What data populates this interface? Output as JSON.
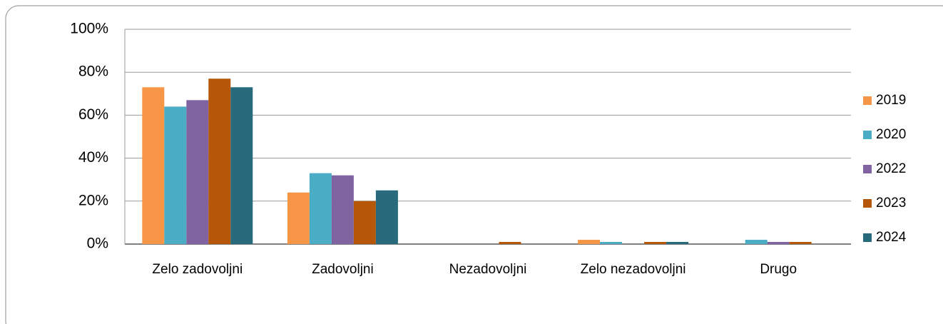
{
  "chart_data": {
    "type": "bar",
    "categories": [
      "Zelo zadovoljni",
      "Zadovoljni",
      "Nezadovoljni",
      "Zelo nezadovoljni",
      "Drugo"
    ],
    "series": [
      {
        "name": "2019",
        "color": "#f79646",
        "values": [
          73,
          24,
          0,
          2,
          0
        ]
      },
      {
        "name": "2020",
        "color": "#4bacc6",
        "values": [
          64,
          33,
          0,
          1,
          2
        ]
      },
      {
        "name": "2022",
        "color": "#8064a2",
        "values": [
          67,
          32,
          0,
          0,
          1
        ]
      },
      {
        "name": "2023",
        "color": "#b65708",
        "values": [
          77,
          20,
          1,
          1,
          1
        ]
      },
      {
        "name": "2024",
        "color": "#276a7c",
        "values": [
          73,
          25,
          0,
          1,
          0
        ]
      }
    ],
    "ylim": [
      0,
      100
    ],
    "yticks": [
      {
        "value": 0,
        "label": "0%"
      },
      {
        "value": 20,
        "label": "20%"
      },
      {
        "value": 40,
        "label": "40%"
      },
      {
        "value": 60,
        "label": "60%"
      },
      {
        "value": 80,
        "label": "80%"
      },
      {
        "value": 100,
        "label": "100%"
      }
    ],
    "grid": true,
    "legend": "right"
  }
}
